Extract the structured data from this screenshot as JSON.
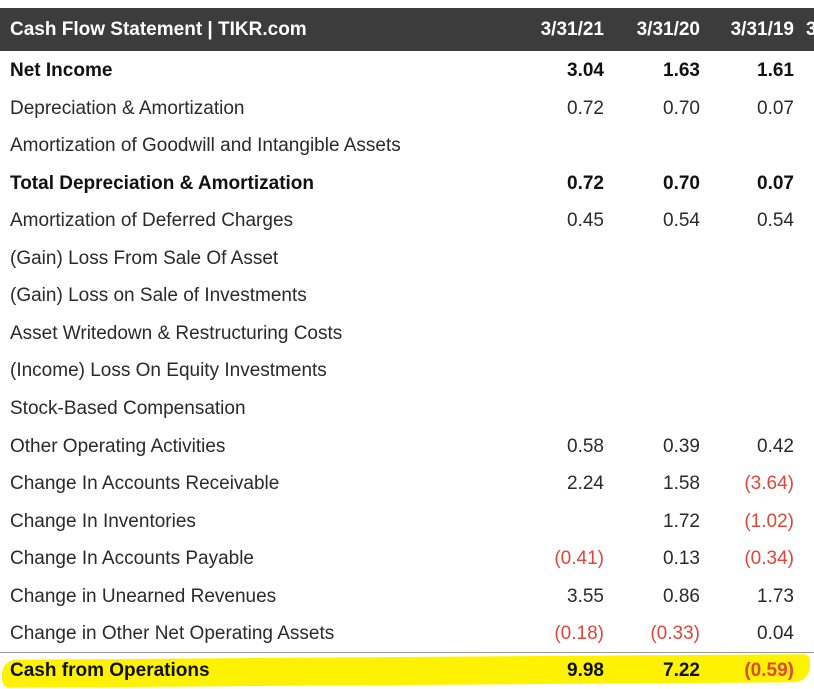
{
  "header": {
    "title": "Cash Flow Statement | TIKR.com",
    "columns": [
      "3/31/21",
      "3/31/20",
      "3/31/19",
      "3"
    ]
  },
  "rows": [
    {
      "label": "Net Income",
      "bold": true,
      "values": [
        "3.04",
        "1.63",
        "1.61"
      ]
    },
    {
      "label": "Depreciation & Amortization",
      "bold": false,
      "values": [
        "0.72",
        "0.70",
        "0.07"
      ]
    },
    {
      "label": "Amortization of Goodwill and Intangible Assets",
      "bold": false,
      "values": [
        "",
        "",
        ""
      ]
    },
    {
      "label": "Total Depreciation & Amortization",
      "bold": true,
      "values": [
        "0.72",
        "0.70",
        "0.07"
      ]
    },
    {
      "label": "Amortization of Deferred Charges",
      "bold": false,
      "values": [
        "0.45",
        "0.54",
        "0.54"
      ]
    },
    {
      "label": "(Gain) Loss From Sale Of Asset",
      "bold": false,
      "values": [
        "",
        "",
        ""
      ]
    },
    {
      "label": "(Gain) Loss on Sale of Investments",
      "bold": false,
      "values": [
        "",
        "",
        ""
      ]
    },
    {
      "label": "Asset Writedown & Restructuring Costs",
      "bold": false,
      "values": [
        "",
        "",
        ""
      ]
    },
    {
      "label": "(Income) Loss On Equity Investments",
      "bold": false,
      "values": [
        "",
        "",
        ""
      ]
    },
    {
      "label": "Stock-Based Compensation",
      "bold": false,
      "values": [
        "",
        "",
        ""
      ]
    },
    {
      "label": "Other Operating Activities",
      "bold": false,
      "values": [
        "0.58",
        "0.39",
        "0.42"
      ]
    },
    {
      "label": "Change In Accounts Receivable",
      "bold": false,
      "values": [
        "2.24",
        "1.58",
        "(3.64)"
      ]
    },
    {
      "label": "Change In Inventories",
      "bold": false,
      "values": [
        "",
        "1.72",
        "(1.02)"
      ]
    },
    {
      "label": "Change In Accounts Payable",
      "bold": false,
      "values": [
        "(0.41)",
        "0.13",
        "(0.34)"
      ]
    },
    {
      "label": "Change in Unearned Revenues",
      "bold": false,
      "values": [
        "3.55",
        "0.86",
        "1.73"
      ]
    },
    {
      "label": "Change in Other Net Operating Assets",
      "bold": false,
      "values": [
        "(0.18)",
        "(0.33)",
        "0.04"
      ]
    }
  ],
  "total_row": {
    "label": "Cash from Operations",
    "bold": true,
    "values": [
      "9.98",
      "7.22",
      "(0.59)"
    ]
  },
  "colors": {
    "header_bg": "#3c3c3c",
    "negative": "#e0463a",
    "highlight": "#fff200"
  }
}
